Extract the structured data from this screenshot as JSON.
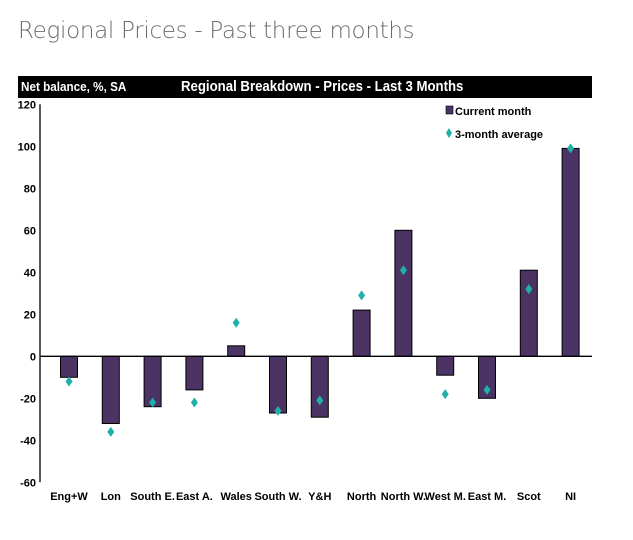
{
  "page_title": "Regional Prices - Past three months",
  "chart_data": {
    "type": "bar",
    "title": "Regional Breakdown - Prices - Last 3 Months",
    "ylabel": "Net balance, %, SA",
    "xlabel": "",
    "ylim": [
      -60,
      120
    ],
    "yticks": [
      120,
      100,
      80,
      60,
      40,
      20,
      0,
      -20,
      -40,
      -60
    ],
    "grid": false,
    "legend_position": "top-right",
    "categories": [
      "Eng+W",
      "Lon",
      "South E.",
      "East A.",
      "Wales",
      "South W.",
      "Y&H",
      "North",
      "North W.",
      "West M.",
      "East M.",
      "Scot",
      "NI"
    ],
    "series": [
      {
        "name": "Current month",
        "kind": "bar",
        "color": "#4b3364",
        "values": [
          -10,
          -32,
          -24,
          -16,
          5,
          -27,
          -29,
          22,
          60,
          -9,
          -20,
          41,
          99
        ]
      },
      {
        "name": "3-month average",
        "kind": "marker",
        "marker": "diamond",
        "color": "#1fb0a8",
        "values": [
          -12,
          -36,
          -22,
          -22,
          16,
          -26,
          -21,
          29,
          41,
          -18,
          -16,
          32,
          99
        ]
      }
    ]
  }
}
